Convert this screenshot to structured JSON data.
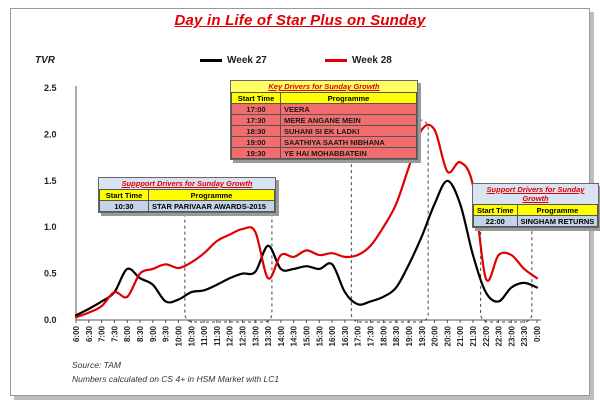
{
  "chart_data": {
    "type": "line",
    "title": "Day in Life of Star Plus on Sunday",
    "ylabel": "TVR",
    "xlabel": "",
    "ylim": [
      0,
      2.5
    ],
    "yticks": [
      "0.0",
      "0.5",
      "1.0",
      "1.5",
      "2.0",
      "2.5"
    ],
    "categories": [
      "6:00",
      "6:30",
      "7:00",
      "7:30",
      "8:00",
      "8:30",
      "9:00",
      "9:30",
      "10:00",
      "10:30",
      "11:00",
      "11:30",
      "12:00",
      "12:30",
      "13:00",
      "13:30",
      "14:00",
      "14:30",
      "15:00",
      "15:30",
      "16:00",
      "16:30",
      "17:00",
      "17:30",
      "18:00",
      "18:30",
      "19:00",
      "19:30",
      "20:00",
      "20:30",
      "21:00",
      "21:30",
      "22:00",
      "22:30",
      "23:00",
      "23:30",
      "0:00"
    ],
    "series": [
      {
        "name": "Week 27",
        "color": "#000000",
        "values": [
          0.05,
          0.12,
          0.2,
          0.3,
          0.55,
          0.45,
          0.38,
          0.2,
          0.22,
          0.3,
          0.32,
          0.38,
          0.45,
          0.5,
          0.52,
          0.8,
          0.55,
          0.55,
          0.58,
          0.55,
          0.6,
          0.3,
          0.17,
          0.2,
          0.25,
          0.35,
          0.6,
          0.9,
          1.25,
          1.5,
          1.25,
          0.7,
          0.3,
          0.2,
          0.35,
          0.4,
          0.35
        ]
      },
      {
        "name": "Week 28",
        "color": "#e00000",
        "values": [
          0.03,
          0.08,
          0.15,
          0.3,
          0.25,
          0.5,
          0.55,
          0.6,
          0.56,
          0.62,
          0.72,
          0.85,
          0.92,
          0.98,
          0.95,
          0.45,
          0.7,
          0.68,
          0.75,
          0.7,
          0.72,
          0.68,
          0.7,
          0.8,
          1.0,
          1.25,
          1.65,
          2.05,
          2.05,
          1.6,
          1.7,
          1.45,
          0.45,
          0.7,
          0.7,
          0.55,
          0.45
        ]
      }
    ],
    "grid": false,
    "legend_position": "top"
  },
  "legend": {
    "week27": "Week 27",
    "week28": "Week 28"
  },
  "source_lines": [
    "Source: TAM",
    "Numbers calculated on CS 4+ in HSM Market with LC1"
  ],
  "drivers": {
    "mid": {
      "title": "Key Drivers for Sunday Growth",
      "header": [
        "Start Time",
        "Programme"
      ],
      "rows": [
        [
          "17:00",
          "VEERA"
        ],
        [
          "17:30",
          "MERE ANGANE MEIN"
        ],
        [
          "18:30",
          "SUHANI SI EK LADKI"
        ],
        [
          "19:00",
          "SAATHIYA SAATH NIBHANA"
        ],
        [
          "19:30",
          "YE HAI MOHABBATEIN"
        ]
      ]
    },
    "left": {
      "title": "Suppport Drivers for Sunday Growth",
      "header": [
        "Start Time",
        "Programme"
      ],
      "rows": [
        [
          "10:30",
          "STAR PARIVAAR AWARDS-2015"
        ]
      ]
    },
    "right": {
      "title": "Support Drivers for Sunday Growth",
      "header": [
        "Start Time",
        "Programme"
      ],
      "rows": [
        [
          "22:00",
          "SINGHAM RETURNS"
        ]
      ]
    }
  }
}
